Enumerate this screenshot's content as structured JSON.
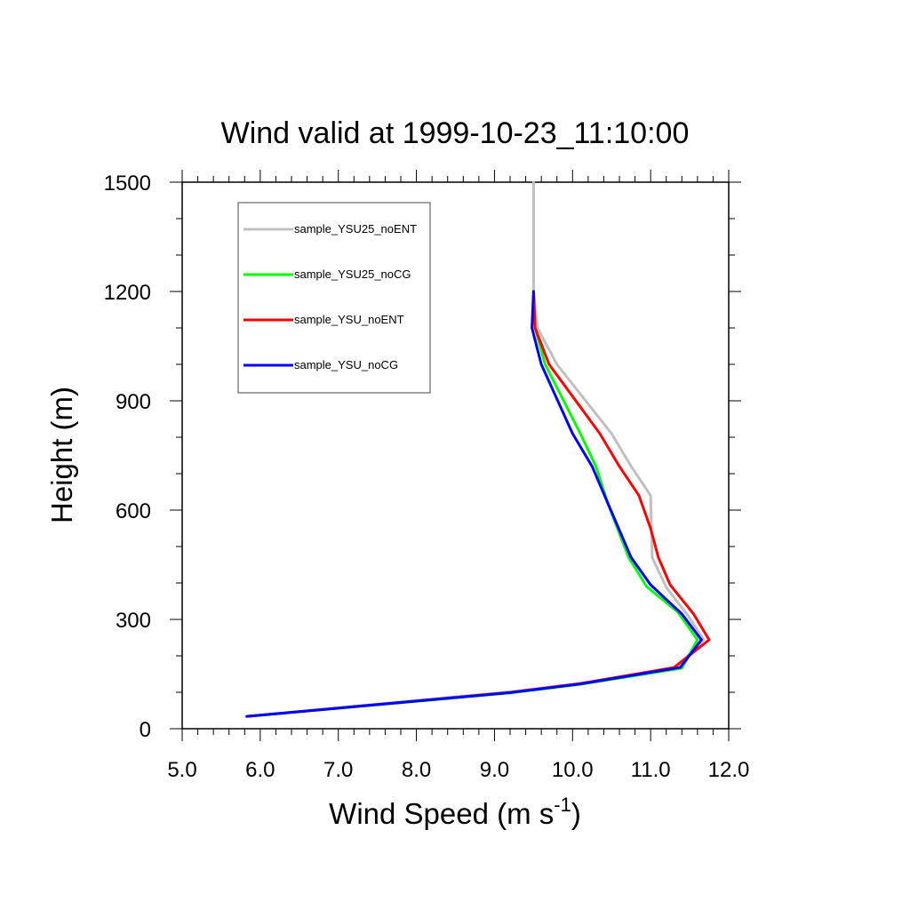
{
  "chart_data": {
    "type": "line",
    "title": "Wind valid at 1999-10-23_11:10:00",
    "xlabel": "Wind Speed (m s",
    "xlabel_superscript": "-1",
    "xlabel_suffix": ")",
    "ylabel": "Height (m)",
    "xlim": [
      5.0,
      12.0
    ],
    "ylim": [
      0,
      1500
    ],
    "x_ticks": [
      5.0,
      6.0,
      7.0,
      8.0,
      9.0,
      10.0,
      11.0,
      12.0
    ],
    "x_tick_labels": [
      "5.0",
      "6.0",
      "7.0",
      "8.0",
      "9.0",
      "10.0",
      "11.0",
      "12.0"
    ],
    "y_ticks": [
      0,
      300,
      600,
      900,
      1200,
      1500
    ],
    "y_tick_labels": [
      "0",
      "300",
      "600",
      "900",
      "1200",
      "1500"
    ],
    "grid": false,
    "legend_position": "top-left",
    "series": [
      {
        "name": "sample_YSU25_noENT",
        "color": "#c0c0c0",
        "points": [
          [
            5.82,
            34
          ],
          [
            9.22,
            102
          ],
          [
            10.1,
            125
          ],
          [
            11.32,
            166
          ],
          [
            11.68,
            244
          ],
          [
            11.48,
            310
          ],
          [
            11.2,
            388
          ],
          [
            11.02,
            470
          ],
          [
            11.0,
            640
          ],
          [
            10.75,
            720
          ],
          [
            10.5,
            810
          ],
          [
            9.8,
            1000
          ],
          [
            9.55,
            1100
          ],
          [
            9.5,
            1200
          ],
          [
            9.5,
            1300
          ],
          [
            9.5,
            1400
          ],
          [
            9.5,
            1500
          ]
        ]
      },
      {
        "name": "sample_YSU25_noCG",
        "color": "#00ff00",
        "points": [
          [
            5.83,
            34
          ],
          [
            9.2,
            98
          ],
          [
            10.1,
            122
          ],
          [
            11.4,
            166
          ],
          [
            11.6,
            244
          ],
          [
            11.35,
            320
          ],
          [
            10.95,
            390
          ],
          [
            10.72,
            470
          ],
          [
            10.45,
            620
          ],
          [
            10.3,
            720
          ],
          [
            10.1,
            810
          ],
          [
            9.65,
            1000
          ],
          [
            9.52,
            1100
          ],
          [
            9.5,
            1200
          ]
        ]
      },
      {
        "name": "sample_YSU_noENT",
        "color": "#ff0000",
        "points": [
          [
            5.83,
            34
          ],
          [
            9.22,
            100
          ],
          [
            10.1,
            124
          ],
          [
            11.3,
            168
          ],
          [
            11.75,
            244
          ],
          [
            11.55,
            315
          ],
          [
            11.25,
            395
          ],
          [
            11.1,
            470
          ],
          [
            11.0,
            550
          ],
          [
            10.85,
            640
          ],
          [
            10.6,
            720
          ],
          [
            10.35,
            810
          ],
          [
            9.7,
            1000
          ],
          [
            9.52,
            1100
          ],
          [
            9.5,
            1200
          ]
        ]
      },
      {
        "name": "sample_YSU_noCG",
        "color": "#0000ff",
        "points": [
          [
            5.83,
            34
          ],
          [
            9.2,
            99
          ],
          [
            10.1,
            123
          ],
          [
            11.38,
            168
          ],
          [
            11.65,
            244
          ],
          [
            11.4,
            315
          ],
          [
            11.0,
            395
          ],
          [
            10.75,
            470
          ],
          [
            10.45,
            620
          ],
          [
            10.25,
            720
          ],
          [
            10.0,
            810
          ],
          [
            9.6,
            1000
          ],
          [
            9.48,
            1100
          ],
          [
            9.5,
            1200
          ]
        ]
      }
    ]
  }
}
